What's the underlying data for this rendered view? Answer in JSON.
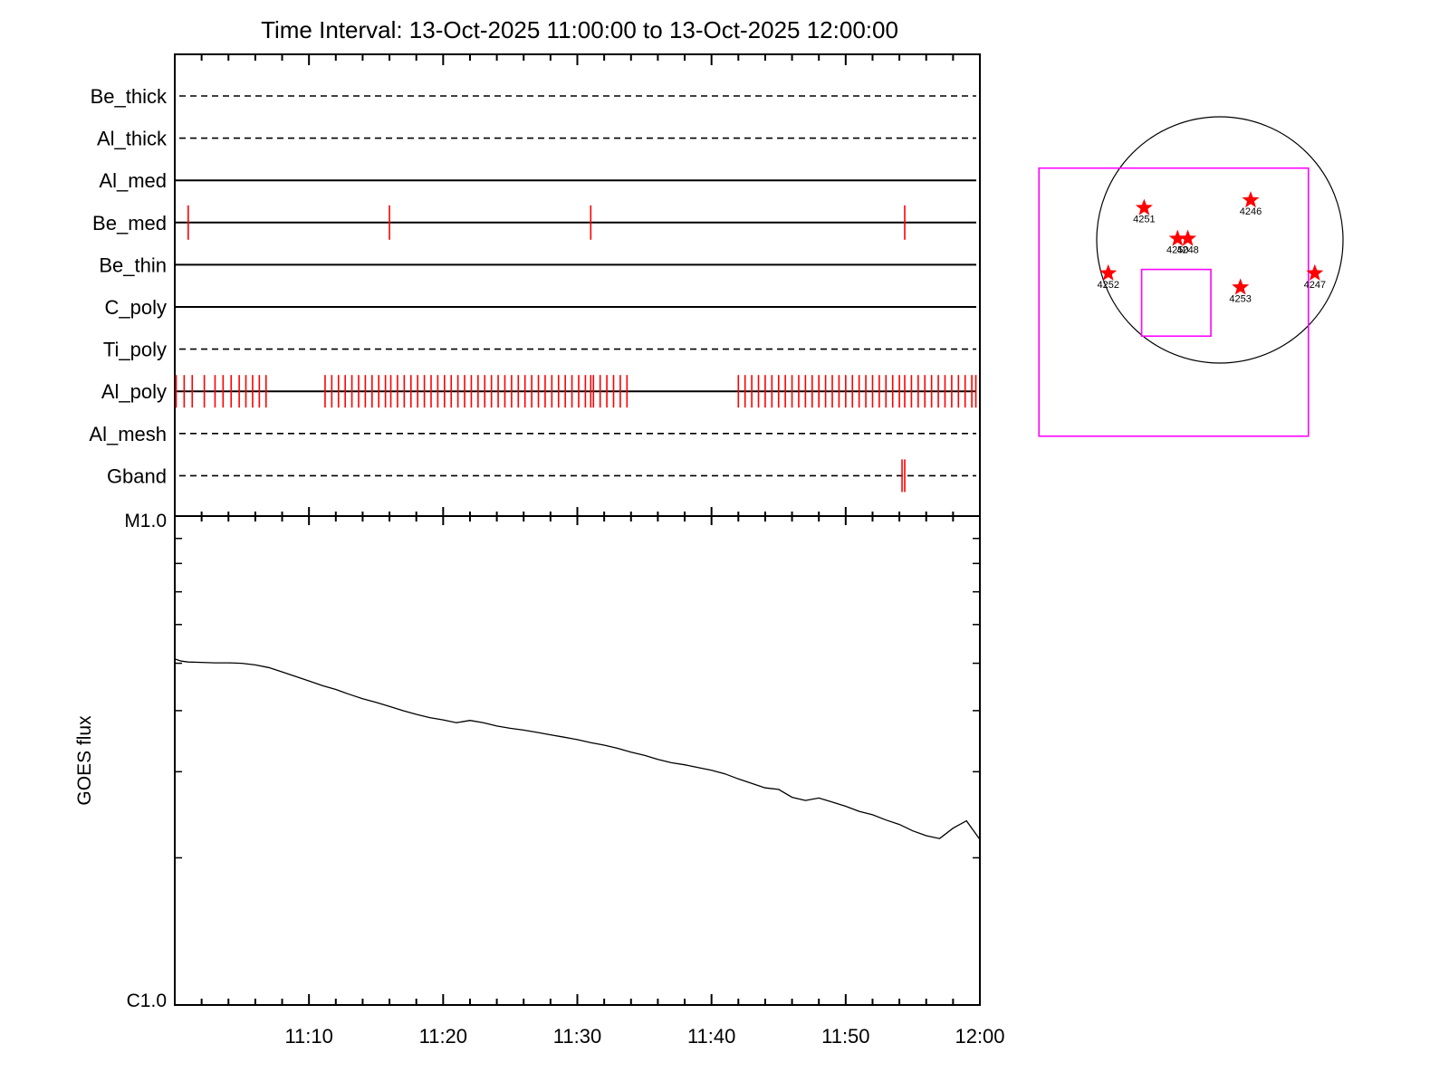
{
  "title": "Time Interval: 13-Oct-2025 11:00:00 to 13-Oct-2025 12:00:00",
  "colors": {
    "axis": "#000000",
    "marks": "#ff0000",
    "fov": "#ff00ff",
    "disk": "#000000"
  },
  "timeline": {
    "labels": [
      "Be_thick",
      "Al_thick",
      "Al_med",
      "Be_med",
      "Be_thin",
      "C_poly",
      "Ti_poly",
      "Al_poly",
      "Al_mesh",
      "Gband"
    ],
    "styles": [
      "dashed",
      "dashed",
      "solid",
      "solid",
      "solid",
      "solid",
      "dashed",
      "solid",
      "dashed",
      "dashed"
    ]
  },
  "chart_data": [
    {
      "type": "timeline",
      "x_unit": "minutes after 11:00",
      "xlim": [
        0,
        60
      ],
      "rows": {
        "Be_med": [
          1.0,
          16.0,
          31.0,
          54.4
        ],
        "Al_poly": [
          0.1,
          0.7,
          1.3,
          2.2,
          3.0,
          3.6,
          4.2,
          4.8,
          5.3,
          5.8,
          6.3,
          6.8,
          11.2,
          11.7,
          12.2,
          12.7,
          13.2,
          13.7,
          14.2,
          14.7,
          15.2,
          15.7,
          16.1,
          16.6,
          17.1,
          17.6,
          18.1,
          18.6,
          19.1,
          19.6,
          20.1,
          20.6,
          21.1,
          21.6,
          22.1,
          22.6,
          23.1,
          23.6,
          24.1,
          24.6,
          25.1,
          25.6,
          26.1,
          26.6,
          27.1,
          27.6,
          28.1,
          28.6,
          29.1,
          29.6,
          30.1,
          30.6,
          31.0,
          31.2,
          31.7,
          32.2,
          32.7,
          33.2,
          33.7,
          42.0,
          42.5,
          43.0,
          43.5,
          44.0,
          44.5,
          45.0,
          45.5,
          46.0,
          46.5,
          47.0,
          47.5,
          48.0,
          48.5,
          49.0,
          49.5,
          50.0,
          50.5,
          51.0,
          51.5,
          52.0,
          52.5,
          53.0,
          53.5,
          54.0,
          54.4,
          54.9,
          55.4,
          55.9,
          56.4,
          56.9,
          57.4,
          57.9,
          58.4,
          58.9,
          59.4,
          59.7
        ],
        "Gband": [
          54.2,
          54.4
        ]
      }
    },
    {
      "type": "line",
      "ylabel": "GOES flux",
      "y_scale": "log",
      "ylim": [
        1e-06,
        1e-05
      ],
      "y_tick_labels": [
        "M1.0",
        "C1.0"
      ],
      "x_tick_labels": [
        "11:10",
        "11:20",
        "11:30",
        "11:40",
        "11:50",
        "12:00"
      ],
      "x_tick_values": [
        10,
        20,
        30,
        40,
        50,
        60
      ],
      "xlim": [
        0,
        60
      ],
      "x": [
        0,
        0.5,
        1,
        2,
        3,
        4,
        5,
        6,
        7,
        8,
        9,
        10,
        11,
        12,
        13,
        14,
        15,
        16,
        17,
        18,
        19,
        20,
        21,
        22,
        23,
        24,
        25,
        26,
        27,
        28,
        29,
        30,
        31,
        32,
        33,
        34,
        35,
        36,
        37,
        38,
        39,
        40,
        41,
        42,
        43,
        44,
        45,
        46,
        47,
        48,
        49,
        50,
        51,
        52,
        53,
        54,
        55,
        56,
        57,
        58,
        59,
        60
      ],
      "y": [
        5.1e-06,
        5.05e-06,
        5.03e-06,
        5.02e-06,
        5.01e-06,
        5.01e-06,
        5e-06,
        4.96e-06,
        4.9e-06,
        4.8e-06,
        4.7e-06,
        4.6e-06,
        4.5e-06,
        4.42e-06,
        4.32e-06,
        4.23e-06,
        4.16e-06,
        4.08e-06,
        4e-06,
        3.93e-06,
        3.87e-06,
        3.83e-06,
        3.78e-06,
        3.82e-06,
        3.78e-06,
        3.72e-06,
        3.68e-06,
        3.65e-06,
        3.61e-06,
        3.57e-06,
        3.53e-06,
        3.49e-06,
        3.44e-06,
        3.4e-06,
        3.35e-06,
        3.29e-06,
        3.24e-06,
        3.18e-06,
        3.13e-06,
        3.1e-06,
        3.06e-06,
        3.02e-06,
        2.97e-06,
        2.9e-06,
        2.84e-06,
        2.78e-06,
        2.76e-06,
        2.66e-06,
        2.62e-06,
        2.65e-06,
        2.6e-06,
        2.55e-06,
        2.49e-06,
        2.45e-06,
        2.39e-06,
        2.34e-06,
        2.27e-06,
        2.22e-06,
        2.19e-06,
        2.3e-06,
        2.38e-06,
        2.18e-06
      ]
    },
    {
      "type": "scatter",
      "x_unit": "arcsec",
      "y_unit": "arcsec",
      "disk_radius": 960,
      "points": [
        {
          "label": "4251",
          "x": -590,
          "y": 250
        },
        {
          "label": "4246",
          "x": 240,
          "y": 310
        },
        {
          "label": "4250",
          "x": -330,
          "y": 10
        },
        {
          "label": "4248",
          "x": -250,
          "y": 10
        },
        {
          "label": "4252",
          "x": -870,
          "y": -260
        },
        {
          "label": "4253",
          "x": 160,
          "y": -370
        },
        {
          "label": "4247",
          "x": 740,
          "y": -260
        }
      ],
      "boxes": [
        {
          "x": [
            -1410,
            690
          ],
          "y": [
            -1530,
            560
          ]
        },
        {
          "x": [
            -610,
            -70
          ],
          "y": [
            -750,
            -230
          ]
        }
      ]
    }
  ]
}
